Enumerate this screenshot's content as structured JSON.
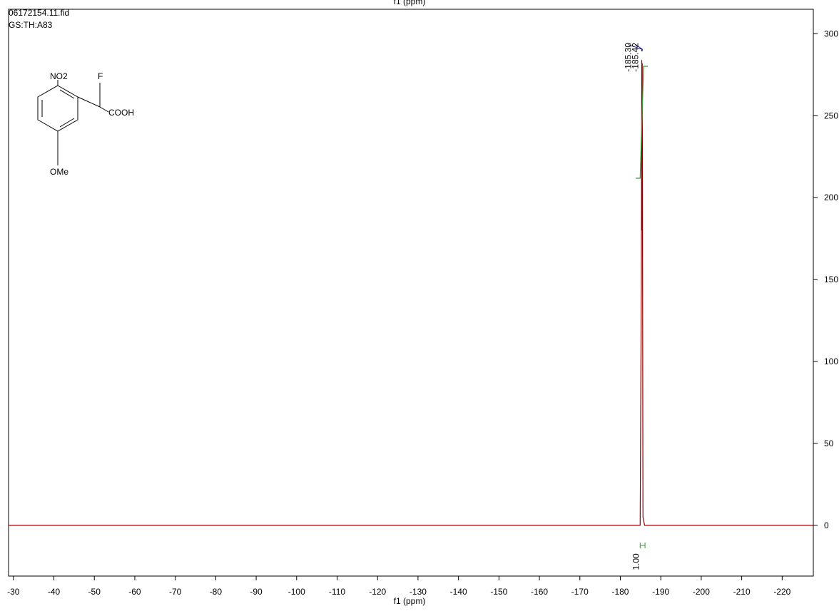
{
  "chart_data": {
    "type": "line",
    "title": "06172154.11.fid",
    "subtitle": "GS:TH:A83",
    "x_label": "f1 (ppm)",
    "xlim": [
      -28.8,
      -227.7
    ],
    "xticks": [
      -30,
      -40,
      -50,
      -60,
      -70,
      -80,
      -90,
      -100,
      -110,
      -120,
      -130,
      -140,
      -150,
      -160,
      -170,
      -180,
      -190,
      -200,
      -210,
      -220
    ],
    "ylim": [
      -31,
      315
    ],
    "yticks": [
      0,
      50,
      100,
      150,
      200,
      250,
      300
    ],
    "series": [
      {
        "color": "#8b0000",
        "x": [
          -28.8,
          -100,
          -184.9,
          -185.2,
          -185.3,
          -185.36,
          -185.42,
          -185.6,
          -186.0,
          -227.7
        ],
        "values": [
          0,
          0,
          0,
          150,
          284,
          180,
          282,
          5,
          0,
          0
        ]
      }
    ],
    "peak_labels": [
      {
        "value": -185.3,
        "label": "-185.30"
      },
      {
        "value": -185.42,
        "label": "-185.42"
      }
    ],
    "integrals": [
      {
        "from": -184.9,
        "to": -186.1,
        "value": 1,
        "label": "1.00"
      }
    ],
    "integral_color": "#2e9a2e",
    "annotation_color": "#1a1a8c",
    "structure_labels": [
      "NO2",
      "F",
      "COOH",
      "OMe"
    ]
  }
}
